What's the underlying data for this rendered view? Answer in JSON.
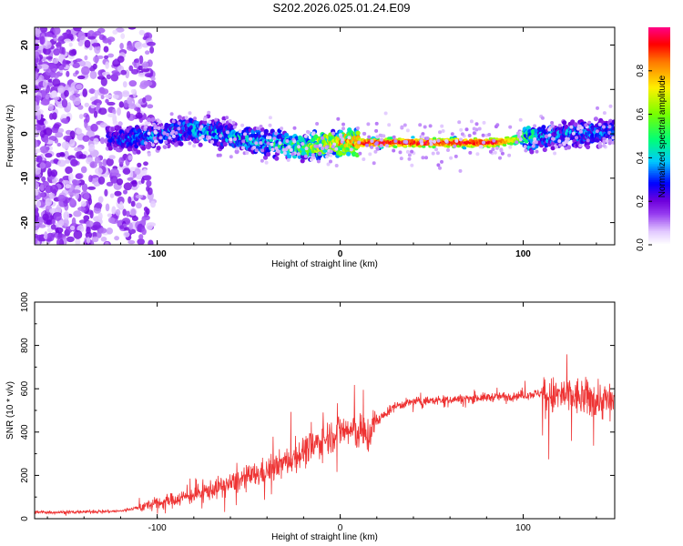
{
  "chart_data": [
    {
      "type": "heatmap",
      "title": "S202.2026.025.01.24.E09",
      "xlabel": "Height of straight line (km)",
      "ylabel": "Frequency (Hz)",
      "xlim": [
        -167,
        150
      ],
      "ylim": [
        -25,
        24
      ],
      "xticks": [
        -100,
        0,
        100
      ],
      "yticks": [
        -20,
        -10,
        0,
        10,
        20
      ],
      "colorbar": {
        "label": "Normalized spectral amplitude",
        "range": [
          0,
          1
        ],
        "ticks": [
          "0.0",
          "0.2",
          "0.4",
          "0.6",
          "0.8"
        ]
      },
      "ridge": {
        "x": [
          -167,
          -115,
          -80,
          -40,
          -20,
          0,
          20,
          60,
          85,
          110,
          150
        ],
        "frequency": [
          0,
          -1,
          1,
          -2,
          -3,
          -2,
          -2,
          -2,
          -2,
          -0.5,
          0.5
        ],
        "peak_amplitude": [
          0.05,
          0.35,
          0.4,
          0.45,
          0.6,
          0.85,
          0.95,
          0.95,
          0.95,
          0.4,
          0.35
        ]
      }
    },
    {
      "type": "line",
      "xlabel": "Height of straight line (km)",
      "ylabel": "SNR (10 * v/v)",
      "xlim": [
        -167,
        150
      ],
      "ylim": [
        0,
        1000
      ],
      "xticks": [
        -100,
        0,
        100
      ],
      "yticks": [
        0,
        200,
        400,
        600,
        800,
        1000
      ],
      "series": [
        {
          "color": "#ee3333",
          "x": [
            -167,
            -150,
            -120,
            -100,
            -80,
            -60,
            -40,
            -30,
            -20,
            -10,
            0,
            10,
            15,
            20,
            30,
            40,
            60,
            80,
            100,
            110,
            115,
            120,
            130,
            140,
            150
          ],
          "values": [
            30,
            30,
            35,
            70,
            110,
            160,
            220,
            260,
            310,
            360,
            410,
            400,
            380,
            450,
            520,
            540,
            550,
            560,
            570,
            580,
            560,
            570,
            560,
            550,
            540
          ]
        }
      ]
    }
  ]
}
